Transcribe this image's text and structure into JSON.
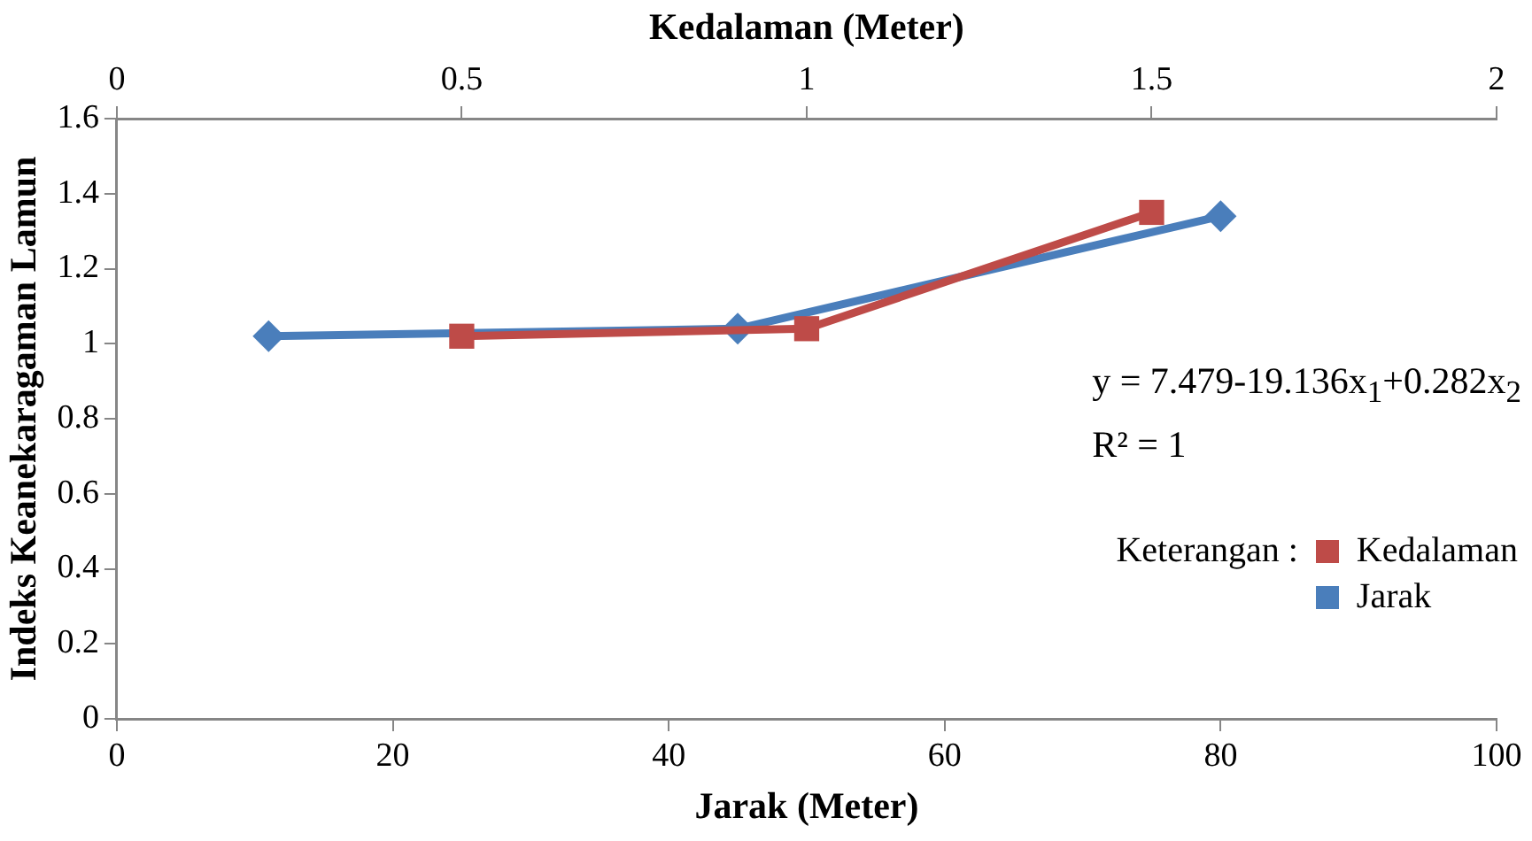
{
  "chart_data": {
    "type": "line",
    "xlabel": "Jarak (Meter)",
    "x2label": "Kedalaman (Meter)",
    "ylabel": "Indeks Keanekaragaman Lamun",
    "xlim": [
      0,
      100
    ],
    "xticks": [
      0,
      20,
      40,
      60,
      80,
      100
    ],
    "x2lim": [
      0,
      2
    ],
    "x2ticks": [
      0,
      0.5,
      1,
      1.5,
      2
    ],
    "ylim": [
      0,
      1.6
    ],
    "yticks": [
      0,
      0.2,
      0.4,
      0.6,
      0.8,
      1,
      1.2,
      1.4,
      1.6
    ],
    "grid": false,
    "legend": "bottom right",
    "legend_title": "Keterangan :",
    "series": [
      {
        "name": "Kedalaman",
        "color": "#be4b48",
        "axis": "x2",
        "marker": "square",
        "x": [
          0.5,
          1,
          1.5
        ],
        "values": [
          1.02,
          1.04,
          1.35
        ]
      },
      {
        "name": "Jarak",
        "color": "#4a7ebb",
        "marker": "diamond",
        "x": [
          11,
          45,
          80
        ],
        "values": [
          1.02,
          1.04,
          1.34
        ]
      }
    ],
    "annotations": [
      "y = 7.479-19.136x$_{1}$+0.282x$_{2}$",
      "R² = 1"
    ]
  }
}
